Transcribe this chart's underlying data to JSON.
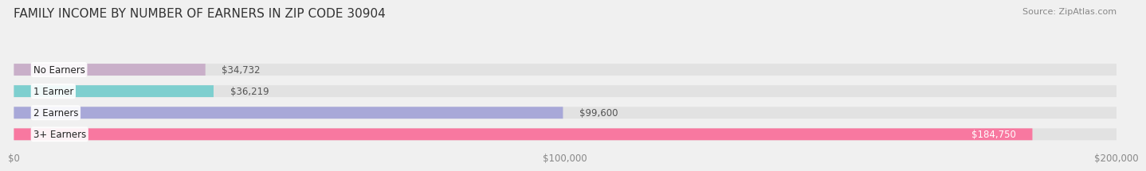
{
  "title": "FAMILY INCOME BY NUMBER OF EARNERS IN ZIP CODE 30904",
  "source": "Source: ZipAtlas.com",
  "categories": [
    "No Earners",
    "1 Earner",
    "2 Earners",
    "3+ Earners"
  ],
  "values": [
    34732,
    36219,
    99600,
    184750
  ],
  "bar_colors": [
    "#c9afc9",
    "#7ecfcf",
    "#a8a8d8",
    "#f878a0"
  ],
  "bar_labels": [
    "$34,732",
    "$36,219",
    "$99,600",
    "$184,750"
  ],
  "xlim": [
    0,
    200000
  ],
  "xticks": [
    0,
    100000,
    200000
  ],
  "xtick_labels": [
    "$0",
    "$100,000",
    "$200,000"
  ],
  "background_color": "#f0f0f0",
  "bar_bg_color": "#e2e2e2",
  "title_fontsize": 11,
  "source_fontsize": 8,
  "label_fontsize": 8.5,
  "tick_fontsize": 8.5
}
